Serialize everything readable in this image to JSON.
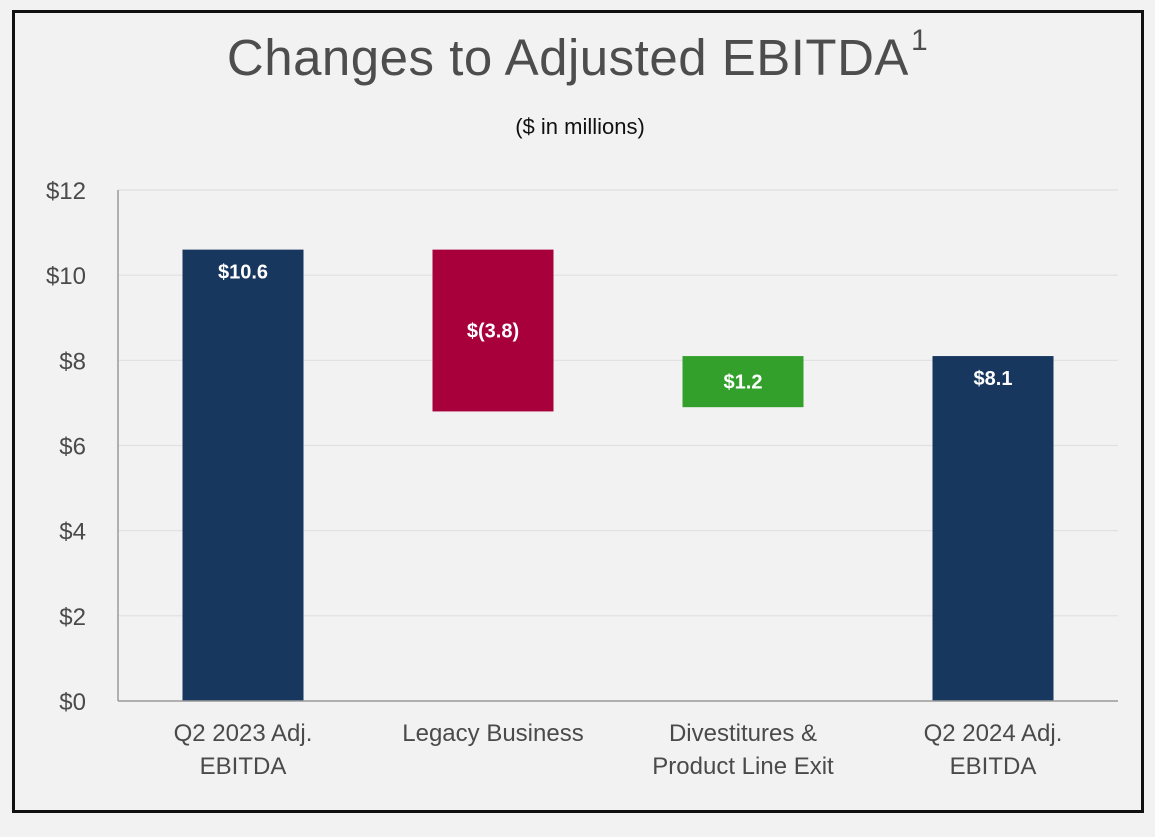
{
  "chart_data": {
    "type": "bar",
    "subtype": "waterfall",
    "title": "Changes to Adjusted EBITDA",
    "title_superscript": "1",
    "subtitle": "($ in millions)",
    "categories": [
      [
        "Q2 2023 Adj.",
        "EBITDA"
      ],
      [
        "Legacy Business"
      ],
      [
        "Divestitures &",
        "Product Line Exit"
      ],
      [
        "Q2 2024 Adj.",
        "EBITDA"
      ]
    ],
    "bars": [
      {
        "kind": "total",
        "start": 0,
        "end": 10.6,
        "label": "$10.6",
        "color": "#17375e"
      },
      {
        "kind": "decrease",
        "start": 10.6,
        "end": 6.8,
        "label": "$(3.8)",
        "color": "#a8003a"
      },
      {
        "kind": "increase",
        "start": 6.9,
        "end": 8.1,
        "label": "$1.2",
        "color": "#33a02c"
      },
      {
        "kind": "total",
        "start": 0,
        "end": 8.1,
        "label": "$8.1",
        "color": "#17375e"
      }
    ],
    "ylim": [
      0,
      12
    ],
    "yticks": [
      0,
      2,
      4,
      6,
      8,
      10,
      12
    ],
    "ytick_labels": [
      "$0",
      "$2",
      "$4",
      "$6",
      "$8",
      "$10",
      "$12"
    ],
    "xlabel": "",
    "ylabel": "",
    "grid": true,
    "legend": "none"
  }
}
